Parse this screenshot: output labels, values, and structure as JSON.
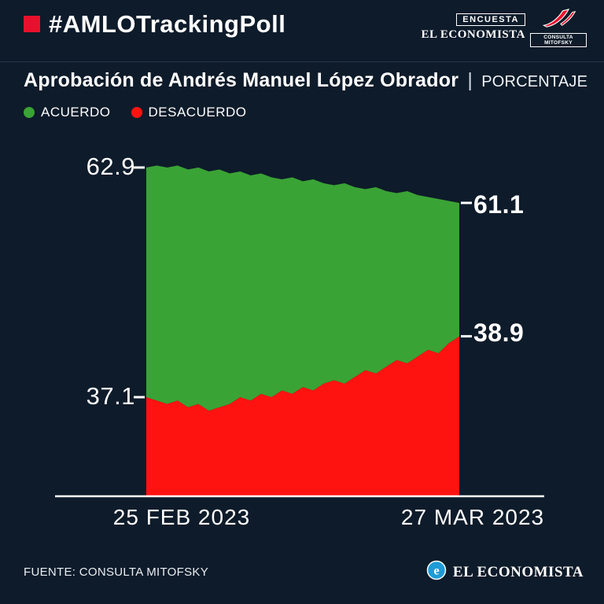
{
  "colors": {
    "background": "#0e1b2a",
    "accent_red": "#e8112d",
    "chart_green": "#3aa335",
    "chart_red": "#fe1311",
    "brand_blue": "#1e9bd7"
  },
  "header": {
    "hashtag": "#AMLOTrackingPoll",
    "encuesta_label": "ENCUESTA",
    "el_economista_label": "EL ECONOMISTA",
    "mitofsky_label": "CONSULTA MITOFSKY"
  },
  "title": {
    "main": "Aprobación de Andrés Manuel López Obrador",
    "separator": "|",
    "unit": "PORCENTAJE"
  },
  "legend": [
    {
      "label": "ACUERDO",
      "color": "#3aa335"
    },
    {
      "label": "DESACUERDO",
      "color": "#fe1311"
    }
  ],
  "chart_data": {
    "type": "area",
    "title": "Aprobación de Andrés Manuel López Obrador (porcentaje)",
    "x_start_label": "25 FEB 2023",
    "x_end_label": "27 MAR 2023",
    "ylabel": "PORCENTAJE",
    "legend_position": "top-left",
    "grid": false,
    "series": [
      {
        "name": "ACUERDO",
        "color": "#3aa335",
        "start_value": 62.9,
        "end_value": 61.1,
        "values": [
          62.9,
          63.0,
          62.9,
          63.0,
          62.8,
          62.9,
          62.7,
          62.8,
          62.6,
          62.7,
          62.5,
          62.6,
          62.4,
          62.3,
          62.4,
          62.2,
          62.3,
          62.1,
          62.0,
          62.1,
          61.9,
          61.8,
          61.9,
          61.7,
          61.6,
          61.7,
          61.5,
          61.4,
          61.3,
          61.2,
          61.1
        ]
      },
      {
        "name": "DESACUERDO",
        "color": "#fe1311",
        "start_value": 37.1,
        "end_value": 38.9,
        "values": [
          37.1,
          37.0,
          36.9,
          37.0,
          36.8,
          36.9,
          36.7,
          36.8,
          36.9,
          37.1,
          37.0,
          37.2,
          37.1,
          37.3,
          37.2,
          37.4,
          37.3,
          37.5,
          37.6,
          37.5,
          37.7,
          37.9,
          37.8,
          38.0,
          38.2,
          38.1,
          38.3,
          38.5,
          38.4,
          38.7,
          38.9
        ]
      }
    ],
    "labels": {
      "acuerdo_start": "62.9",
      "acuerdo_end": "61.1",
      "desacuerdo_start": "37.1",
      "desacuerdo_end": "38.9"
    }
  },
  "footer": {
    "source": "FUENTE: CONSULTA MITOFSKY",
    "brand": "EL ECONOMISTA"
  }
}
